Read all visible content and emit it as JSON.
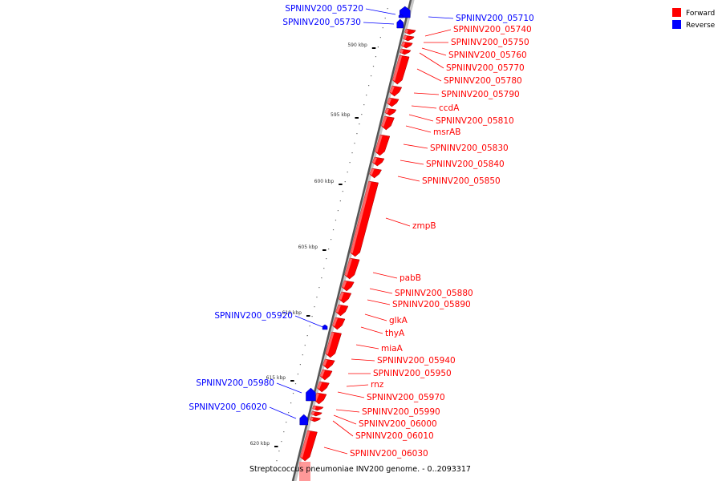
{
  "caption": "Streptococcus pneumoniae INV200 genome. - 0..2093317",
  "legend": [
    {
      "label": "Forward",
      "color": "#ff0000"
    },
    {
      "label": "Reverse",
      "color": "#0000ff"
    }
  ],
  "ticks": [
    "590 kbp",
    "595 kbp",
    "600 kbp",
    "605 kbp",
    "610 kbp",
    "615 kbp",
    "620 kbp"
  ],
  "genes": [
    {
      "name": "SPNINV200_05720",
      "strand": "reverse"
    },
    {
      "name": "SPNINV200_05710",
      "strand": "reverse"
    },
    {
      "name": "SPNINV200_05730",
      "strand": "reverse"
    },
    {
      "name": "SPNINV200_05740",
      "strand": "forward"
    },
    {
      "name": "SPNINV200_05750",
      "strand": "forward"
    },
    {
      "name": "SPNINV200_05760",
      "strand": "forward"
    },
    {
      "name": "SPNINV200_05770",
      "strand": "forward"
    },
    {
      "name": "SPNINV200_05780",
      "strand": "forward"
    },
    {
      "name": "SPNINV200_05790",
      "strand": "forward"
    },
    {
      "name": "ccdA",
      "strand": "forward"
    },
    {
      "name": "SPNINV200_05810",
      "strand": "forward"
    },
    {
      "name": "msrAB",
      "strand": "forward"
    },
    {
      "name": "SPNINV200_05830",
      "strand": "forward"
    },
    {
      "name": "SPNINV200_05840",
      "strand": "forward"
    },
    {
      "name": "SPNINV200_05850",
      "strand": "forward"
    },
    {
      "name": "zmpB",
      "strand": "forward"
    },
    {
      "name": "pabB",
      "strand": "forward"
    },
    {
      "name": "SPNINV200_05880",
      "strand": "forward"
    },
    {
      "name": "SPNINV200_05890",
      "strand": "forward"
    },
    {
      "name": "glkA",
      "strand": "forward"
    },
    {
      "name": "thyA",
      "strand": "forward"
    },
    {
      "name": "miaA",
      "strand": "forward"
    },
    {
      "name": "SPNINV200_05920",
      "strand": "reverse"
    },
    {
      "name": "SPNINV200_05940",
      "strand": "forward"
    },
    {
      "name": "SPNINV200_05950",
      "strand": "forward"
    },
    {
      "name": "rnz",
      "strand": "forward"
    },
    {
      "name": "SPNINV200_05970",
      "strand": "forward"
    },
    {
      "name": "SPNINV200_05980",
      "strand": "reverse"
    },
    {
      "name": "SPNINV200_05990",
      "strand": "forward"
    },
    {
      "name": "SPNINV200_06000",
      "strand": "forward"
    },
    {
      "name": "SPNINV200_06010",
      "strand": "forward"
    },
    {
      "name": "SPNINV200_06020",
      "strand": "reverse"
    },
    {
      "name": "SPNINV200_06030",
      "strand": "forward"
    }
  ]
}
